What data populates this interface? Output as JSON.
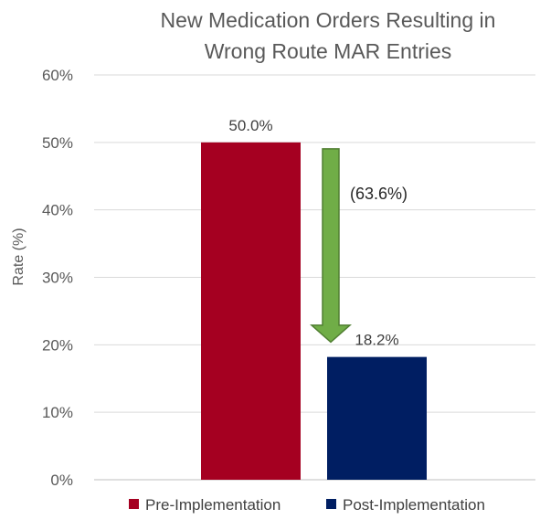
{
  "chart_data": {
    "type": "bar",
    "title_lines": [
      "New Medication Orders Resulting in",
      "Wrong Route MAR Entries"
    ],
    "ylabel": "Rate (%)",
    "ylim": [
      0,
      60
    ],
    "yticks": [
      0,
      10,
      20,
      30,
      40,
      50,
      60
    ],
    "ytick_labels": [
      "0%",
      "10%",
      "20%",
      "30%",
      "40%",
      "50%",
      "60%"
    ],
    "grid": true,
    "series": [
      {
        "name": "Pre-Implementation",
        "value": 50.0,
        "label": "50.0%",
        "color": "#A50021"
      },
      {
        "name": "Post-Implementation",
        "value": 18.2,
        "label": "18.2%",
        "color": "#001E62"
      }
    ],
    "annotation": {
      "text": "(63.6%)",
      "arrow_color": "#70AD47",
      "arrow_border": "#507E32"
    },
    "legend_position": "bottom"
  }
}
